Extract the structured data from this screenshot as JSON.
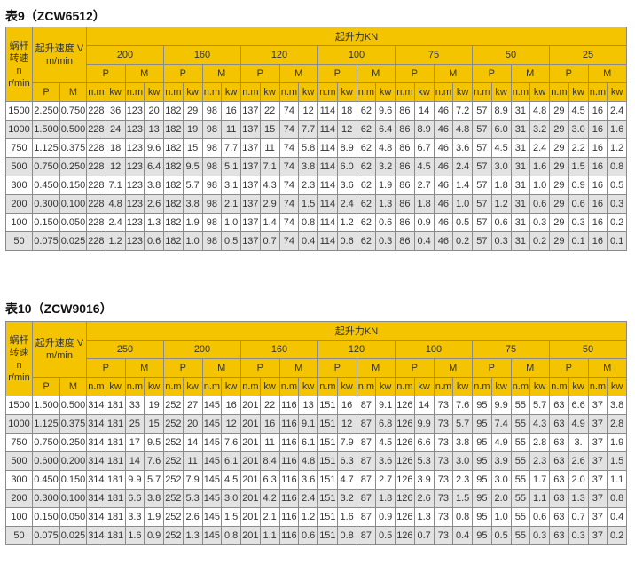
{
  "header": {
    "speed_col": "蜗杆转速 n r/min",
    "lift_speed": "起升速度 V m/min",
    "lift_force": "起升力KN",
    "P": "P",
    "M": "M",
    "nm": "n.m",
    "kw": "kw"
  },
  "colors": {
    "header": "#f5c400",
    "stripe": "#e2e2e2"
  },
  "tables": [
    {
      "title": "表9（ZCW6512）",
      "loads": [
        "200",
        "160",
        "120",
        "100",
        "75",
        "50",
        "25"
      ],
      "rows": [
        [
          "1500",
          "2.250",
          "0.750",
          "228",
          "36",
          "123",
          "20",
          "182",
          "29",
          "98",
          "16",
          "137",
          "22",
          "74",
          "12",
          "114",
          "18",
          "62",
          "9.6",
          "86",
          "14",
          "46",
          "7.2",
          "57",
          "8.9",
          "31",
          "4.8",
          "29",
          "4.5",
          "16",
          "2.4"
        ],
        [
          "1000",
          "1.500",
          "0.500",
          "228",
          "24",
          "123",
          "13",
          "182",
          "19",
          "98",
          "11",
          "137",
          "15",
          "74",
          "7.7",
          "114",
          "12",
          "62",
          "6.4",
          "86",
          "8.9",
          "46",
          "4.8",
          "57",
          "6.0",
          "31",
          "3.2",
          "29",
          "3.0",
          "16",
          "1.6"
        ],
        [
          "750",
          "1.125",
          "0.375",
          "228",
          "18",
          "123",
          "9.6",
          "182",
          "15",
          "98",
          "7.7",
          "137",
          "11",
          "74",
          "5.8",
          "114",
          "8.9",
          "62",
          "4.8",
          "86",
          "6.7",
          "46",
          "3.6",
          "57",
          "4.5",
          "31",
          "2.4",
          "29",
          "2.2",
          "16",
          "1.2"
        ],
        [
          "500",
          "0.750",
          "0.250",
          "228",
          "12",
          "123",
          "6.4",
          "182",
          "9.5",
          "98",
          "5.1",
          "137",
          "7.1",
          "74",
          "3.8",
          "114",
          "6.0",
          "62",
          "3.2",
          "86",
          "4.5",
          "46",
          "2.4",
          "57",
          "3.0",
          "31",
          "1.6",
          "29",
          "1.5",
          "16",
          "0.8"
        ],
        [
          "300",
          "0.450",
          "0.150",
          "228",
          "7.1",
          "123",
          "3.8",
          "182",
          "5.7",
          "98",
          "3.1",
          "137",
          "4.3",
          "74",
          "2.3",
          "114",
          "3.6",
          "62",
          "1.9",
          "86",
          "2.7",
          "46",
          "1.4",
          "57",
          "1.8",
          "31",
          "1.0",
          "29",
          "0.9",
          "16",
          "0.5"
        ],
        [
          "200",
          "0.300",
          "0.100",
          "228",
          "4.8",
          "123",
          "2.6",
          "182",
          "3.8",
          "98",
          "2.1",
          "137",
          "2.9",
          "74",
          "1.5",
          "114",
          "2.4",
          "62",
          "1.3",
          "86",
          "1.8",
          "46",
          "1.0",
          "57",
          "1.2",
          "31",
          "0.6",
          "29",
          "0.6",
          "16",
          "0.3"
        ],
        [
          "100",
          "0.150",
          "0.050",
          "228",
          "2.4",
          "123",
          "1.3",
          "182",
          "1.9",
          "98",
          "1.0",
          "137",
          "1.4",
          "74",
          "0.8",
          "114",
          "1.2",
          "62",
          "0.6",
          "86",
          "0.9",
          "46",
          "0.5",
          "57",
          "0.6",
          "31",
          "0.3",
          "29",
          "0.3",
          "16",
          "0.2"
        ],
        [
          "50",
          "0.075",
          "0.025",
          "228",
          "1.2",
          "123",
          "0.6",
          "182",
          "1.0",
          "98",
          "0.5",
          "137",
          "0.7",
          "74",
          "0.4",
          "114",
          "0.6",
          "62",
          "0.3",
          "86",
          "0.4",
          "46",
          "0.2",
          "57",
          "0.3",
          "31",
          "0.2",
          "29",
          "0.1",
          "16",
          "0.1"
        ]
      ]
    },
    {
      "title": "表10（ZCW9016）",
      "loads": [
        "250",
        "200",
        "160",
        "120",
        "100",
        "75",
        "50"
      ],
      "rows": [
        [
          "1500",
          "1.500",
          "0.500",
          "314",
          "181",
          "33",
          "19",
          "252",
          "27",
          "145",
          "16",
          "201",
          "22",
          "116",
          "13",
          "151",
          "16",
          "87",
          "9.1",
          "126",
          "14",
          "73",
          "7.6",
          "95",
          "9.9",
          "55",
          "5.7",
          "63",
          "6.6",
          "37",
          "3.8"
        ],
        [
          "1000",
          "1.125",
          "0.375",
          "314",
          "181",
          "25",
          "15",
          "252",
          "20",
          "145",
          "12",
          "201",
          "16",
          "116",
          "9.1",
          "151",
          "12",
          "87",
          "6.8",
          "126",
          "9.9",
          "73",
          "5.7",
          "95",
          "7.4",
          "55",
          "4.3",
          "63",
          "4.9",
          "37",
          "2.8"
        ],
        [
          "750",
          "0.750",
          "0.250",
          "314",
          "181",
          "17",
          "9.5",
          "252",
          "14",
          "145",
          "7.6",
          "201",
          "11",
          "116",
          "6.1",
          "151",
          "7.9",
          "87",
          "4.5",
          "126",
          "6.6",
          "73",
          "3.8",
          "95",
          "4.9",
          "55",
          "2.8",
          "63",
          "3.",
          "37",
          "1.9"
        ],
        [
          "500",
          "0.600",
          "0.200",
          "314",
          "181",
          "14",
          "7.6",
          "252",
          "11",
          "145",
          "6.1",
          "201",
          "8.4",
          "116",
          "4.8",
          "151",
          "6.3",
          "87",
          "3.6",
          "126",
          "5.3",
          "73",
          "3.0",
          "95",
          "3.9",
          "55",
          "2.3",
          "63",
          "2.6",
          "37",
          "1.5"
        ],
        [
          "300",
          "0.450",
          "0.150",
          "314",
          "181",
          "9.9",
          "5.7",
          "252",
          "7.9",
          "145",
          "4.5",
          "201",
          "6.3",
          "116",
          "3.6",
          "151",
          "4.7",
          "87",
          "2.7",
          "126",
          "3.9",
          "73",
          "2.3",
          "95",
          "3.0",
          "55",
          "1.7",
          "63",
          "2.0",
          "37",
          "1.1"
        ],
        [
          "200",
          "0.300",
          "0.100",
          "314",
          "181",
          "6.6",
          "3.8",
          "252",
          "5.3",
          "145",
          "3.0",
          "201",
          "4.2",
          "116",
          "2.4",
          "151",
          "3.2",
          "87",
          "1.8",
          "126",
          "2.6",
          "73",
          "1.5",
          "95",
          "2.0",
          "55",
          "1.1",
          "63",
          "1.3",
          "37",
          "0.8"
        ],
        [
          "100",
          "0.150",
          "0.050",
          "314",
          "181",
          "3.3",
          "1.9",
          "252",
          "2.6",
          "145",
          "1.5",
          "201",
          "2.1",
          "116",
          "1.2",
          "151",
          "1.6",
          "87",
          "0.9",
          "126",
          "1.3",
          "73",
          "0.8",
          "95",
          "1.0",
          "55",
          "0.6",
          "63",
          "0.7",
          "37",
          "0.4"
        ],
        [
          "50",
          "0.075",
          "0.025",
          "314",
          "181",
          "1.6",
          "0.9",
          "252",
          "1.3",
          "145",
          "0.8",
          "201",
          "1.1",
          "116",
          "0.6",
          "151",
          "0.8",
          "87",
          "0.5",
          "126",
          "0.7",
          "73",
          "0.4",
          "95",
          "0.5",
          "55",
          "0.3",
          "63",
          "0.3",
          "37",
          "0.2"
        ]
      ]
    }
  ]
}
